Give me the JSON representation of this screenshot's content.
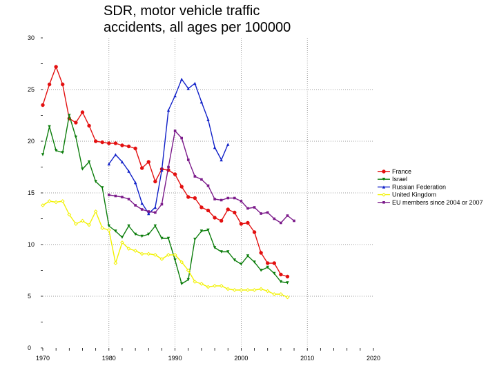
{
  "chart_data": {
    "type": "line",
    "title_line1": "SDR, motor vehicle traffic",
    "title_line2": "accidents, all ages per 100000",
    "xlabel": "",
    "ylabel": "",
    "xlim": [
      1970,
      2020
    ],
    "ylim": [
      0,
      30
    ],
    "x_ticks": [
      1970,
      1980,
      1990,
      2000,
      2010,
      2020
    ],
    "y_ticks": [
      0,
      5,
      10,
      15,
      20,
      25,
      30
    ],
    "x_tick_labels": [
      "1970",
      "1980",
      "1990",
      "2000",
      "2010",
      "2020"
    ],
    "y_tick_labels": [
      "0",
      "5",
      "10",
      "15",
      "20",
      "25",
      "30"
    ],
    "grid": true,
    "legend_position": "right",
    "series": [
      {
        "name": "France",
        "color": "#e31010",
        "marker": "circle",
        "x": [
          1970,
          1971,
          1972,
          1973,
          1974,
          1975,
          1976,
          1977,
          1978,
          1979,
          1980,
          1981,
          1982,
          1983,
          1984,
          1985,
          1986,
          1987,
          1988,
          1989,
          1990,
          1991,
          1992,
          1993,
          1994,
          1995,
          1996,
          1997,
          1998,
          1999,
          2000,
          2001,
          2002,
          2003,
          2004,
          2005,
          2006,
          2007
        ],
        "y": [
          23.5,
          25.5,
          27.2,
          25.5,
          22.2,
          21.8,
          22.8,
          21.5,
          20.0,
          19.9,
          19.8,
          19.8,
          19.6,
          19.5,
          19.3,
          17.4,
          18.0,
          16.1,
          17.3,
          17.2,
          16.8,
          15.6,
          14.6,
          14.5,
          13.6,
          13.3,
          12.6,
          12.3,
          13.4,
          13.1,
          12.0,
          12.1,
          11.2,
          9.2,
          8.2,
          8.2,
          7.1,
          6.9
        ]
      },
      {
        "name": "Israel",
        "color": "#0b7d0b",
        "marker": "triangle-down",
        "x": [
          1970,
          1971,
          1972,
          1973,
          1974,
          1975,
          1976,
          1977,
          1978,
          1979,
          1980,
          1981,
          1982,
          1983,
          1984,
          1985,
          1986,
          1987,
          1988,
          1989,
          1990,
          1991,
          1992,
          1993,
          1994,
          1995,
          1996,
          1997,
          1998,
          1999,
          2000,
          2001,
          2002,
          2003,
          2004,
          2005,
          2006,
          2007
        ],
        "y": [
          18.7,
          21.4,
          19.1,
          18.9,
          22.5,
          20.4,
          17.3,
          18.0,
          16.1,
          15.5,
          11.8,
          11.3,
          10.7,
          11.8,
          11.0,
          10.8,
          11.0,
          11.8,
          10.6,
          10.6,
          8.5,
          6.2,
          6.6,
          10.5,
          11.3,
          11.4,
          9.7,
          9.3,
          9.3,
          8.5,
          8.1,
          8.9,
          8.3,
          7.5,
          7.8,
          7.2,
          6.4,
          6.3
        ]
      },
      {
        "name": "Russian Federation",
        "color": "#1020c8",
        "marker": "triangle-up",
        "x": [
          1980,
          1981,
          1982,
          1983,
          1984,
          1985,
          1986,
          1987,
          1988,
          1989,
          1990,
          1991,
          1992,
          1993,
          1994,
          1995,
          1996,
          1997,
          1998
        ],
        "y": [
          17.8,
          18.7,
          18.0,
          17.1,
          16.0,
          14.0,
          13.0,
          13.6,
          17.2,
          23.0,
          24.4,
          26.0,
          25.1,
          25.6,
          23.8,
          22.1,
          19.4,
          18.2,
          19.7
        ]
      },
      {
        "name": "United Kingdom",
        "color": "#f2f200",
        "marker": "diamond",
        "x": [
          1970,
          1971,
          1972,
          1973,
          1974,
          1975,
          1976,
          1977,
          1978,
          1979,
          1980,
          1981,
          1982,
          1983,
          1984,
          1985,
          1986,
          1987,
          1988,
          1989,
          1990,
          1991,
          1992,
          1993,
          1994,
          1995,
          1996,
          1997,
          1998,
          1999,
          2000,
          2001,
          2002,
          2003,
          2004,
          2005,
          2006,
          2007
        ],
        "y": [
          13.8,
          14.2,
          14.1,
          14.2,
          12.9,
          12.0,
          12.3,
          11.9,
          13.2,
          11.6,
          11.4,
          8.2,
          10.2,
          9.6,
          9.4,
          9.1,
          9.1,
          9.0,
          8.6,
          9.0,
          9.0,
          8.3,
          7.5,
          6.4,
          6.2,
          5.9,
          6.0,
          6.0,
          5.7,
          5.6,
          5.6,
          5.6,
          5.6,
          5.7,
          5.5,
          5.2,
          5.2,
          4.9
        ]
      },
      {
        "name": "EU members since 2004 or 2007",
        "color": "#7b1a8a",
        "marker": "square",
        "x": [
          1980,
          1981,
          1982,
          1983,
          1984,
          1985,
          1986,
          1987,
          1988,
          1989,
          1990,
          1991,
          1992,
          1993,
          1994,
          1995,
          1996,
          1997,
          1998,
          1999,
          2000,
          2001,
          2002,
          2003,
          2004,
          2005,
          2006,
          2007,
          2008
        ],
        "y": [
          14.8,
          14.7,
          14.6,
          14.4,
          13.8,
          13.4,
          13.2,
          13.1,
          13.9,
          17.5,
          21.0,
          20.3,
          18.2,
          16.6,
          16.3,
          15.7,
          14.4,
          14.3,
          14.5,
          14.5,
          14.2,
          13.5,
          13.6,
          13.0,
          13.1,
          12.5,
          12.1,
          12.8,
          12.3
        ]
      }
    ]
  }
}
